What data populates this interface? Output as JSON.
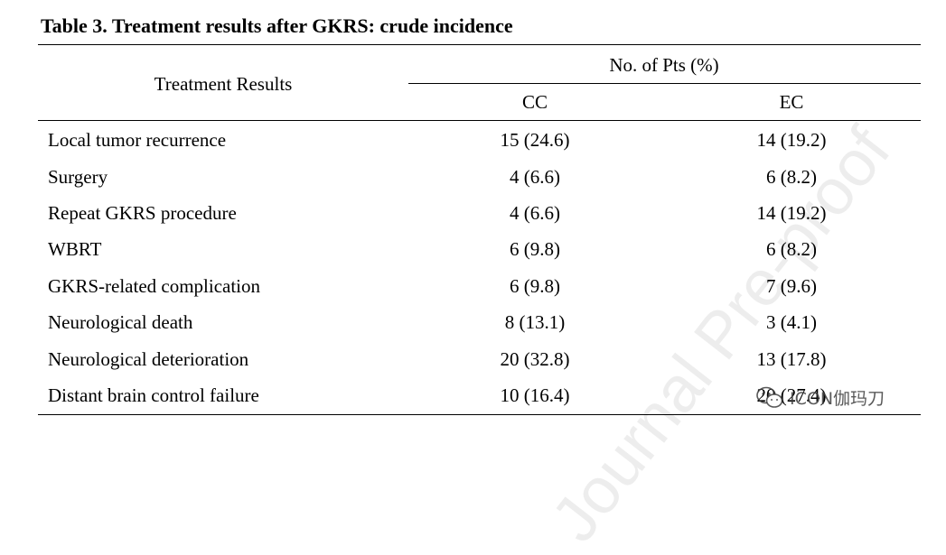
{
  "caption": "Table 3. Treatment results after GKRS: crude incidence",
  "header": {
    "row_label": "Treatment Results",
    "group_label": "No. of Pts (%)",
    "col_cc": "CC",
    "col_ec": "EC"
  },
  "rows": [
    {
      "label": "Local tumor recurrence",
      "cc": "15 (24.6)",
      "ec": "14 (19.2)"
    },
    {
      "label": "Surgery",
      "cc": "4 (6.6)",
      "ec": "6 (8.2)"
    },
    {
      "label": "Repeat GKRS procedure",
      "cc": "4 (6.6)",
      "ec": "14 (19.2)"
    },
    {
      "label": "WBRT",
      "cc": "6 (9.8)",
      "ec": "6 (8.2)"
    },
    {
      "label": "GKRS-related complication",
      "cc": "6 (9.8)",
      "ec": "7 (9.6)"
    },
    {
      "label": "Neurological death",
      "cc": "8 (13.1)",
      "ec": "3 (4.1)"
    },
    {
      "label": "Neurological deterioration",
      "cc": "20 (32.8)",
      "ec": "13 (17.8)"
    },
    {
      "label": "Distant brain control failure",
      "cc": "10 (16.4)",
      "ec": "20 (27.4)"
    }
  ],
  "watermark": "Journal Pre-proof",
  "social_badge": {
    "icon": "wechat-icon",
    "text": "ICON伽玛刀"
  }
}
